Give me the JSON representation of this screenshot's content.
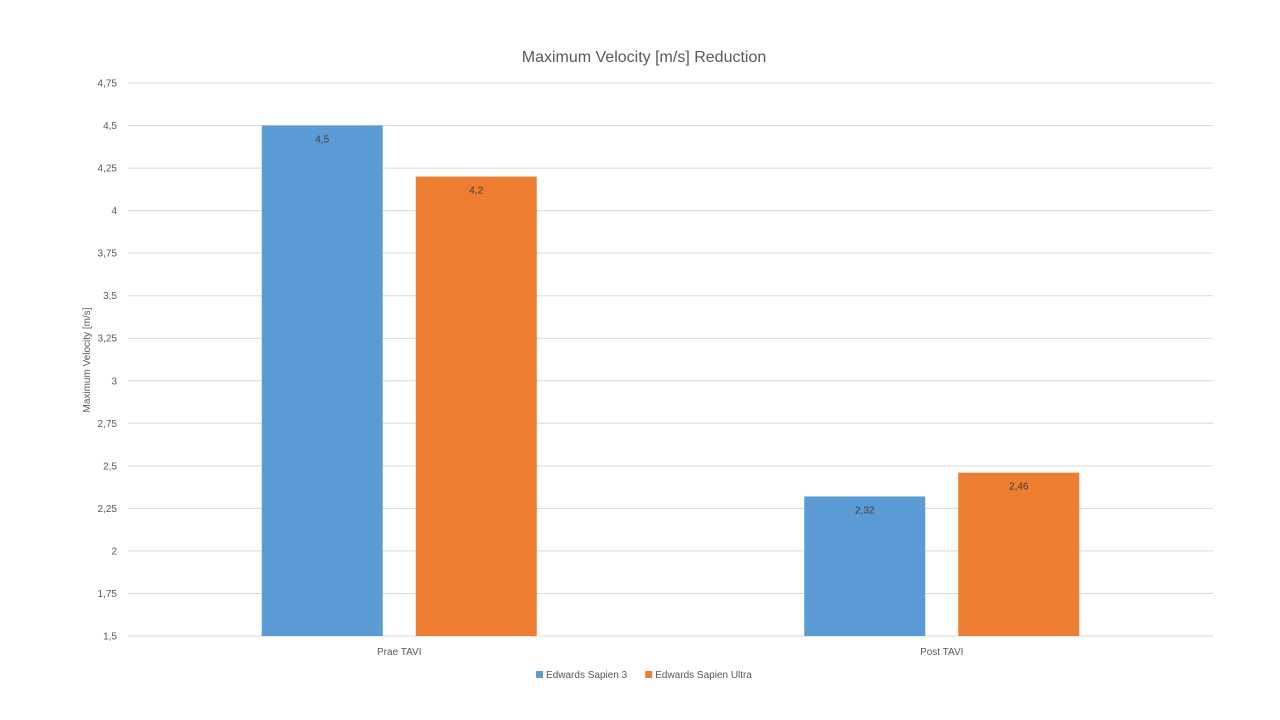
{
  "chart_data": {
    "type": "bar",
    "title": "Maximum Velocity [m/s] Reduction",
    "xlabel": "",
    "ylabel": "Maximum Velocity [m/s]",
    "categories": [
      "Prae TAVI",
      "Post TAVI"
    ],
    "series": [
      {
        "name": "Edwards Sapien 3",
        "color": "#5b9bd5",
        "values": [
          4.5,
          2.32
        ],
        "labels": [
          "4,5",
          "2,32"
        ]
      },
      {
        "name": "Edwards Sapien Ultra",
        "color": "#ed7d31",
        "values": [
          4.2,
          2.46
        ],
        "labels": [
          "4,2",
          "2,46"
        ]
      }
    ],
    "ylim": [
      1.5,
      4.75
    ],
    "yticks": [
      1.5,
      1.75,
      2,
      2.25,
      2.5,
      2.75,
      3,
      3.25,
      3.5,
      3.75,
      4,
      4.25,
      4.5,
      4.75
    ],
    "ytick_labels": [
      "1,5",
      "1,75",
      "2",
      "2,25",
      "2,5",
      "2,75",
      "3",
      "3,25",
      "3,5",
      "3,75",
      "4",
      "4,25",
      "4,5",
      "4,75"
    ],
    "grid": true,
    "legend_position": "bottom"
  }
}
